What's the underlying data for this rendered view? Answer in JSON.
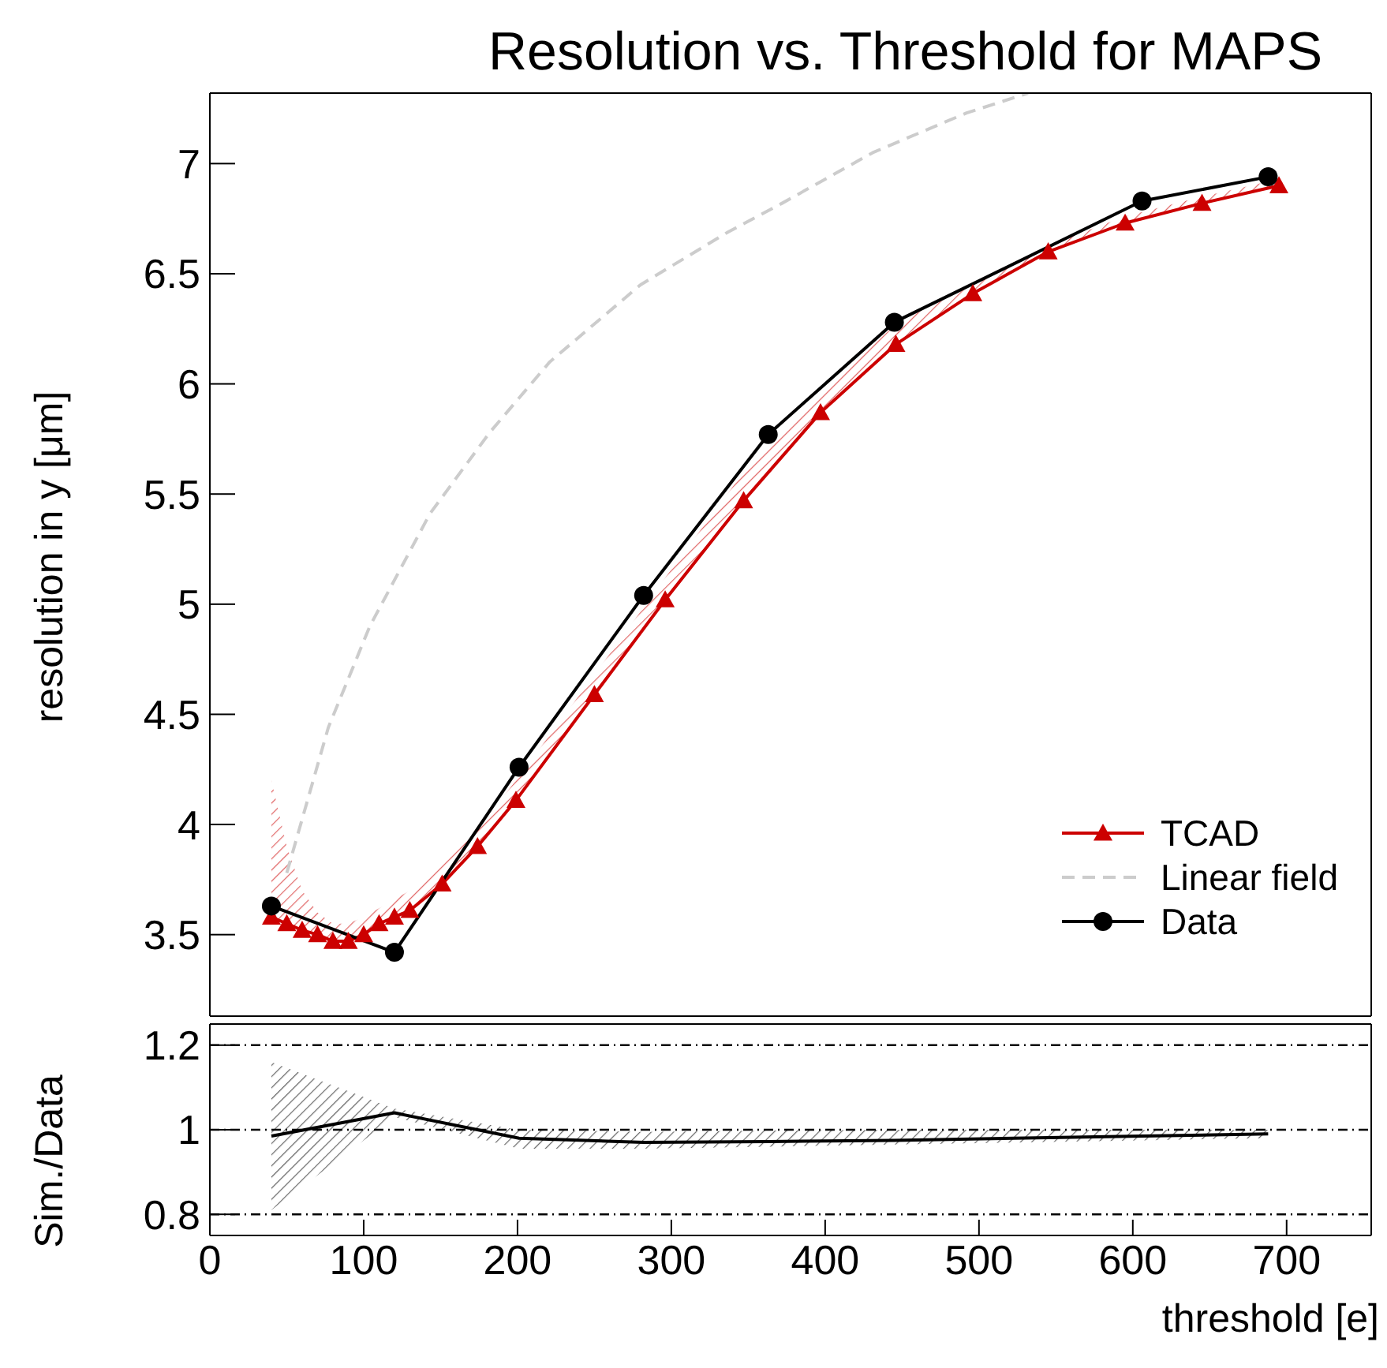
{
  "chart_data": [
    {
      "type": "line",
      "title": "Resolution vs. Threshold for MAPS",
      "ylabel": "resolution in y [μm]",
      "xlim": [
        0,
        755
      ],
      "xticks": [
        0,
        100,
        200,
        300,
        400,
        500,
        600,
        700
      ],
      "ylim": [
        3.13,
        7.32
      ],
      "yticks": [
        3.5,
        4,
        4.5,
        5,
        5.5,
        6,
        6.5,
        7
      ],
      "tick_labels": "y",
      "legend": "bottom right",
      "series": [
        {
          "name": "TCAD",
          "color": "#cc0000",
          "marker": "triangle",
          "x": [
            40,
            50,
            60,
            70,
            80,
            90,
            100,
            110,
            120,
            130,
            151,
            174,
            199,
            250,
            296,
            347,
            397,
            446,
            496,
            545,
            595,
            645,
            695
          ],
          "values": [
            3.58,
            3.55,
            3.52,
            3.5,
            3.47,
            3.47,
            3.5,
            3.55,
            3.58,
            3.61,
            3.73,
            3.9,
            4.11,
            4.59,
            5.02,
            5.47,
            5.87,
            6.18,
            6.41,
            6.6,
            6.73,
            6.82,
            6.9
          ],
          "lower": [
            3.58,
            3.55,
            3.52,
            3.5,
            3.47,
            3.47,
            3.5,
            3.55,
            3.58,
            3.61,
            3.73,
            3.9,
            4.11,
            4.59,
            5.02,
            5.47,
            5.87,
            6.18,
            6.41,
            6.6,
            6.73,
            6.82,
            6.9
          ],
          "upper": [
            4.2,
            3.9,
            3.7,
            3.6,
            3.55,
            3.55,
            3.58,
            3.62,
            3.66,
            3.7,
            3.82,
            3.98,
            4.2,
            4.68,
            5.12,
            5.6,
            5.97,
            6.27,
            6.46,
            6.63,
            6.76,
            6.85,
            6.93
          ]
        },
        {
          "name": "Linear field",
          "color": "#cccccc",
          "marker": "none",
          "line_style": "dashed",
          "x": [
            50,
            77,
            104,
            143,
            182,
            221,
            280,
            337,
            372,
            431,
            492,
            532
          ],
          "values": [
            3.78,
            4.44,
            4.9,
            5.41,
            5.78,
            6.1,
            6.45,
            6.69,
            6.82,
            7.05,
            7.23,
            7.32
          ]
        },
        {
          "name": "Data",
          "color": "#000000",
          "marker": "circle",
          "x": [
            40,
            120,
            201,
            282,
            363,
            445,
            606,
            688
          ],
          "values": [
            3.63,
            3.42,
            4.26,
            5.04,
            5.77,
            6.28,
            6.83,
            6.94
          ]
        }
      ]
    },
    {
      "type": "line",
      "ylabel": "Sim./Data",
      "xlabel": "threshold [e]",
      "xlim": [
        0,
        755
      ],
      "xticks": [
        0,
        100,
        200,
        300,
        400,
        500,
        600,
        700
      ],
      "ylim": [
        0.75,
        1.25
      ],
      "yticks": [
        0.8,
        1,
        1.2
      ],
      "marker": "none",
      "ref_lines": [
        {
          "axis": "y",
          "value": 0.8,
          "line_style": "dashed",
          "color": "#000000"
        },
        {
          "axis": "y",
          "value": 1,
          "line_style": "dashed",
          "color": "#000000"
        },
        {
          "axis": "y",
          "value": 1.2,
          "line_style": "dashed",
          "color": "#000000"
        }
      ],
      "series": [
        {
          "color": "#000000",
          "x": [
            40,
            120,
            201,
            282,
            363,
            445,
            606,
            688
          ],
          "values": [
            0.985,
            1.04,
            0.98,
            0.97,
            0.972,
            0.975,
            0.985,
            0.99
          ],
          "lower": [
            0.81,
            1.03,
            0.955,
            0.955,
            0.96,
            0.965,
            0.975,
            0.98
          ],
          "upper": [
            1.16,
            1.05,
            1.0,
            0.995,
            0.998,
            1.0,
            1.0,
            1.0
          ]
        }
      ]
    }
  ]
}
